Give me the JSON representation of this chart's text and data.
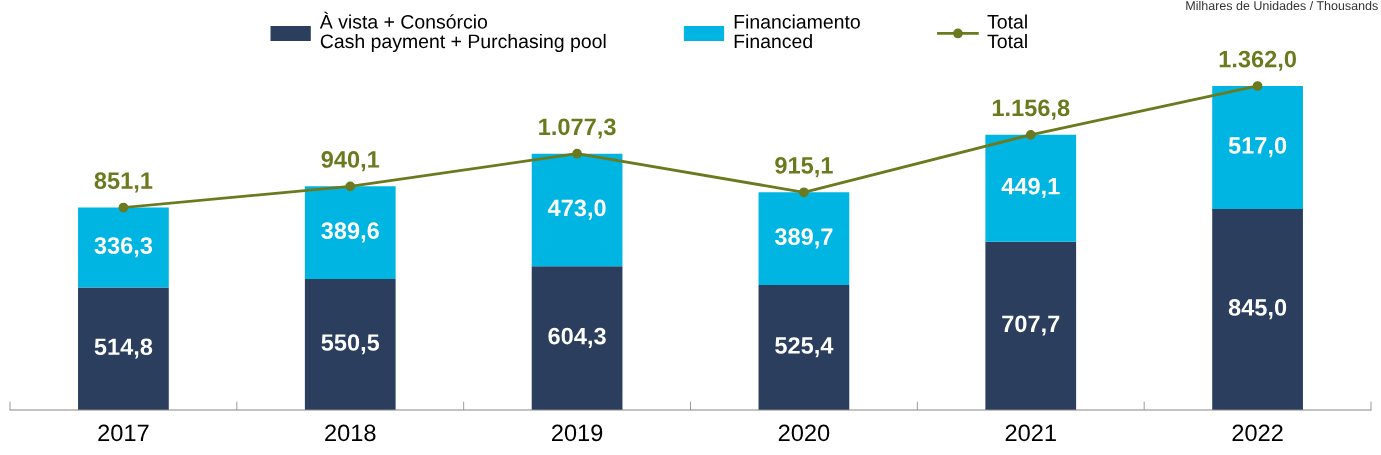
{
  "chart_data": {
    "type": "bar",
    "stacked": true,
    "categories": [
      "2017",
      "2018",
      "2019",
      "2020",
      "2021",
      "2022"
    ],
    "tick_labels": "x",
    "grid": false,
    "legend": "top",
    "marker": "circle",
    "annotations": [
      "Milhares de Unidades / Thousands"
    ],
    "series": [
      {
        "name": "À vista + Consórcio\nCash payment + Purchasing pool",
        "color": "#2b3e5e",
        "values": [
          514.8,
          550.5,
          604.3,
          525.4,
          707.7,
          845.0
        ],
        "value_labels": [
          "514,8",
          "550,5",
          "604,3",
          "525,4",
          "707,7",
          "845,0"
        ]
      },
      {
        "name": "Financiamento\nFinanced",
        "color": "#00b5e2",
        "values": [
          336.3,
          389.6,
          473.0,
          389.7,
          449.1,
          517.0
        ],
        "value_labels": [
          "336,3",
          "389,6",
          "473,0",
          "389,7",
          "449,1",
          "517,0"
        ]
      },
      {
        "name": "Total\nTotal",
        "type": "line",
        "color": "#6b7a1f",
        "values": [
          851.1,
          940.1,
          1077.3,
          915.1,
          1156.8,
          1362.0
        ],
        "value_labels": [
          "851,1",
          "940,1",
          "1.077,3",
          "915,1",
          "1.156,8",
          "1.362,0"
        ]
      }
    ]
  }
}
